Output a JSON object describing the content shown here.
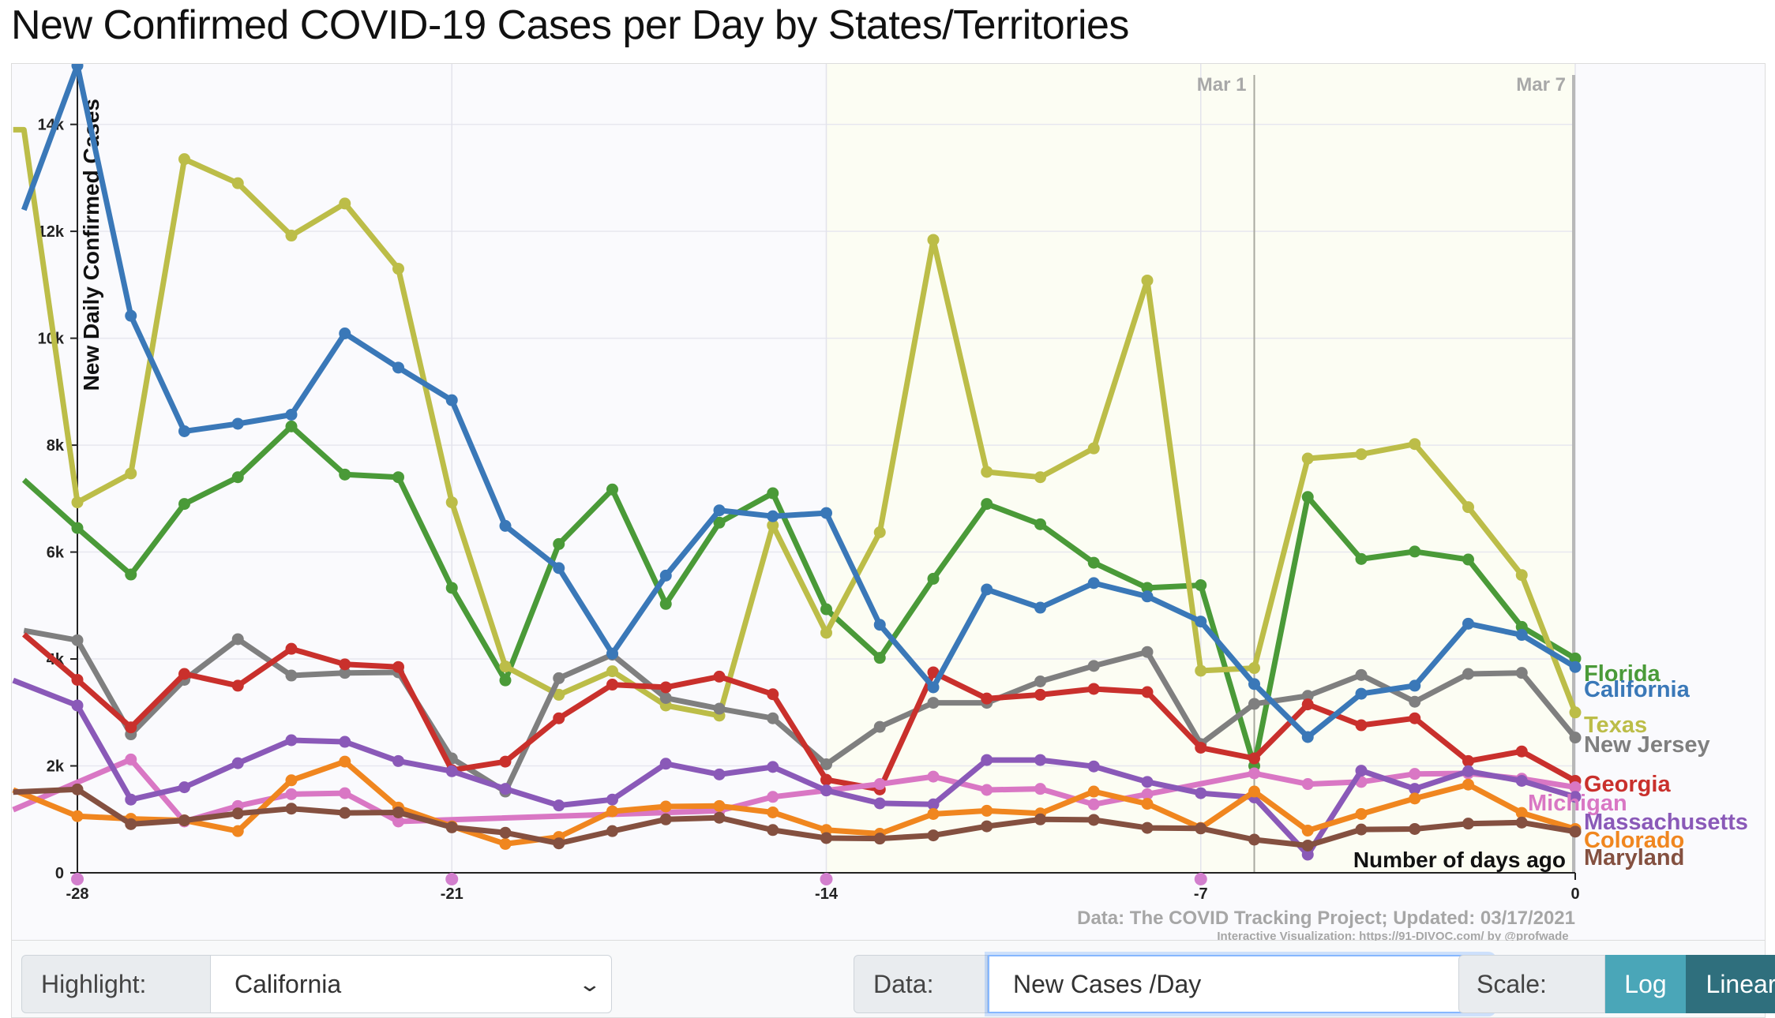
{
  "title": "New Confirmed COVID-19 Cases per Day by States/Territories",
  "chart_data": {
    "type": "line",
    "ylabel": "New Daily Confirmed Cases",
    "xlabel": "Number of days ago",
    "x_ticks": [
      -28,
      -21,
      -14,
      -7,
      0
    ],
    "x_tick_labels": [
      "-28",
      "-21",
      "-14",
      "-7",
      "0"
    ],
    "y_ticks": [
      0,
      2000,
      4000,
      6000,
      8000,
      10000,
      12000,
      14000
    ],
    "y_tick_labels": [
      "0",
      "2k",
      "4k",
      "6k",
      "8k",
      "10k",
      "12k",
      "14k"
    ],
    "xlim": [
      -29.2,
      0
    ],
    "ylim": [
      0,
      15800
    ],
    "date_markers": [
      {
        "label": "Mar 1",
        "x": -6
      },
      {
        "label": "Mar 7",
        "x": 0
      }
    ],
    "shaded_range": [
      -14,
      0
    ],
    "highlight": "California",
    "source": "Data: The COVID Tracking Project; Updated: 03/17/2021",
    "credit": "Interactive Visualization: https://91-DIVOC.com/ by @profwade_",
    "series": [
      {
        "name": "Florida",
        "color": "#4a9a38",
        "x": [
          -29,
          -28,
          -27,
          -26,
          -25,
          -24,
          -23,
          -22,
          -21,
          -20,
          -19,
          -18,
          -17,
          -16,
          -15,
          -14,
          -13,
          -12,
          -11,
          -10,
          -9,
          -8,
          -7,
          -6,
          -5,
          -4,
          -3,
          -2,
          -1,
          0
        ],
        "values": [
          7350,
          6450,
          5580,
          6900,
          7400,
          8350,
          7450,
          7400,
          5330,
          3600,
          6150,
          7170,
          5030,
          6550,
          7100,
          4930,
          4020,
          5500,
          6900,
          6520,
          5800,
          5330,
          5380,
          2000,
          7030,
          5870,
          6010,
          5860,
          4600,
          4010
        ]
      },
      {
        "name": "California",
        "color": "#3a78b8",
        "x": [
          -29,
          -28,
          -27,
          -26,
          -25,
          -24,
          -23,
          -22,
          -21,
          -20,
          -19,
          -18,
          -17,
          -16,
          -15,
          -14,
          -13,
          -12,
          -11,
          -10,
          -9,
          -8,
          -7,
          -6,
          -5,
          -4,
          -3,
          -2,
          -1,
          0
        ],
        "values": [
          12400,
          15100,
          10420,
          8260,
          8400,
          8570,
          10090,
          9450,
          8840,
          6490,
          5700,
          4100,
          5560,
          6780,
          6670,
          6730,
          4640,
          3470,
          5300,
          4960,
          5420,
          5170,
          4700,
          3530,
          2540,
          3350,
          3500,
          4660,
          4450,
          3850
        ]
      },
      {
        "name": "Texas",
        "color": "#bcbd48",
        "x": [
          -29.2,
          -29,
          -28,
          -27,
          -26,
          -25,
          -24,
          -23,
          -22,
          -21,
          -20,
          -19,
          -18,
          -17,
          -16,
          -15,
          -14,
          -13,
          -12,
          -11,
          -10,
          -9,
          -8,
          -7,
          -6,
          -5,
          -4,
          -3,
          -2,
          -1,
          0
        ],
        "values": [
          13900,
          13900,
          6930,
          7470,
          13350,
          12900,
          11920,
          12520,
          11300,
          6930,
          3860,
          3330,
          3770,
          3130,
          2940,
          6500,
          4490,
          6370,
          11840,
          7500,
          7400,
          7940,
          11080,
          3780,
          3830,
          7750,
          7830,
          8020,
          6840,
          5570,
          3000
        ]
      },
      {
        "name": "New Jersey",
        "color": "#7f7f7f",
        "x": [
          -29,
          -28,
          -27,
          -26,
          -25,
          -24,
          -23,
          -22,
          -21,
          -20,
          -19,
          -18,
          -17,
          -16,
          -15,
          -14,
          -13,
          -12,
          -11,
          -10,
          -9,
          -8,
          -7,
          -6,
          -5,
          -4,
          -3,
          -2,
          -1,
          0
        ],
        "values": [
          4530,
          4350,
          2590,
          3610,
          4370,
          3690,
          3740,
          3750,
          2140,
          1520,
          3640,
          4080,
          3270,
          3070,
          2890,
          2030,
          2730,
          3180,
          3180,
          3580,
          3870,
          4130,
          2410,
          3160,
          3310,
          3700,
          3200,
          3720,
          3740,
          2530
        ]
      },
      {
        "name": "Georgia",
        "color": "#c9302c",
        "x": [
          -29,
          -28,
          -27,
          -26,
          -25,
          -24,
          -23,
          -22,
          -21,
          -20,
          -19,
          -18,
          -17,
          -16,
          -15,
          -14,
          -13,
          -12,
          -11,
          -10,
          -9,
          -8,
          -7,
          -6,
          -5,
          -4,
          -3,
          -2,
          -1,
          0
        ],
        "values": [
          4460,
          3610,
          2720,
          3720,
          3500,
          4190,
          3900,
          3850,
          1920,
          2080,
          2890,
          3520,
          3470,
          3670,
          3340,
          1740,
          1560,
          3750,
          3260,
          3330,
          3440,
          3380,
          2340,
          2140,
          3150,
          2760,
          2890,
          2090,
          2270,
          1720
        ]
      },
      {
        "name": "Michigan",
        "color": "#d977c4",
        "x": [
          -29.2,
          -27,
          -26,
          -25,
          -24,
          -23,
          -22,
          -16,
          -15,
          -13,
          -12,
          -11,
          -10,
          -9,
          -8,
          -6,
          -5,
          -4,
          -3,
          -2,
          -1,
          0
        ],
        "values": [
          1180,
          2120,
          960,
          1250,
          1470,
          1490,
          960,
          1160,
          1420,
          1660,
          1800,
          1550,
          1570,
          1280,
          1470,
          1860,
          1660,
          1700,
          1850,
          1860,
          1760,
          1600
        ]
      },
      {
        "name": "Massachusetts",
        "color": "#8a59b8",
        "x": [
          -29.2,
          -28,
          -27,
          -26,
          -25,
          -24,
          -23,
          -22,
          -21,
          -20,
          -19,
          -18,
          -17,
          -16,
          -15,
          -14,
          -13,
          -12,
          -11,
          -10,
          -9,
          -8,
          -7,
          -6,
          -5,
          -4,
          -3,
          -2,
          -1,
          0
        ],
        "values": [
          3600,
          3130,
          1370,
          1600,
          2050,
          2480,
          2450,
          2090,
          1900,
          1570,
          1260,
          1370,
          2040,
          1840,
          1980,
          1540,
          1300,
          1280,
          2110,
          2110,
          1990,
          1700,
          1490,
          1410,
          340,
          1910,
          1570,
          1900,
          1720,
          1420
        ]
      },
      {
        "name": "Colorado",
        "color": "#f0861f",
        "x": [
          -29.2,
          -28,
          -27,
          -26,
          -25,
          -24,
          -23,
          -22,
          -21,
          -20,
          -19,
          -18,
          -17,
          -16,
          -15,
          -14,
          -13,
          -12,
          -11,
          -10,
          -9,
          -8,
          -7,
          -6,
          -5,
          -4,
          -3,
          -2,
          -1,
          0
        ],
        "values": [
          1550,
          1060,
          1010,
          980,
          780,
          1730,
          2080,
          1220,
          870,
          540,
          670,
          1150,
          1240,
          1250,
          1130,
          800,
          730,
          1100,
          1160,
          1110,
          1520,
          1290,
          840,
          1520,
          790,
          1100,
          1390,
          1650,
          1120,
          820
        ]
      },
      {
        "name": "Maryland",
        "color": "#845040",
        "x": [
          -29.2,
          -28,
          -27,
          -26,
          -25,
          -24,
          -23,
          -22,
          -21,
          -20,
          -19,
          -18,
          -17,
          -16,
          -15,
          -14,
          -13,
          -12,
          -11,
          -10,
          -9,
          -8,
          -7,
          -6,
          -5,
          -4,
          -3,
          -2,
          -1,
          0
        ],
        "values": [
          1510,
          1560,
          910,
          980,
          1110,
          1200,
          1120,
          1130,
          850,
          750,
          550,
          780,
          1000,
          1030,
          800,
          650,
          640,
          700,
          870,
          1000,
          990,
          840,
          830,
          620,
          510,
          810,
          820,
          920,
          940,
          770
        ]
      }
    ]
  },
  "controls": {
    "highlight_label": "Highlight:",
    "highlight_value": "California",
    "data_label": "Data:",
    "data_value": "New Cases /Day",
    "scale_label": "Scale:",
    "scale_options": [
      "Log",
      "Linear"
    ],
    "scale_active": "Linear",
    "chevron_icon": "chevron-down-icon"
  }
}
